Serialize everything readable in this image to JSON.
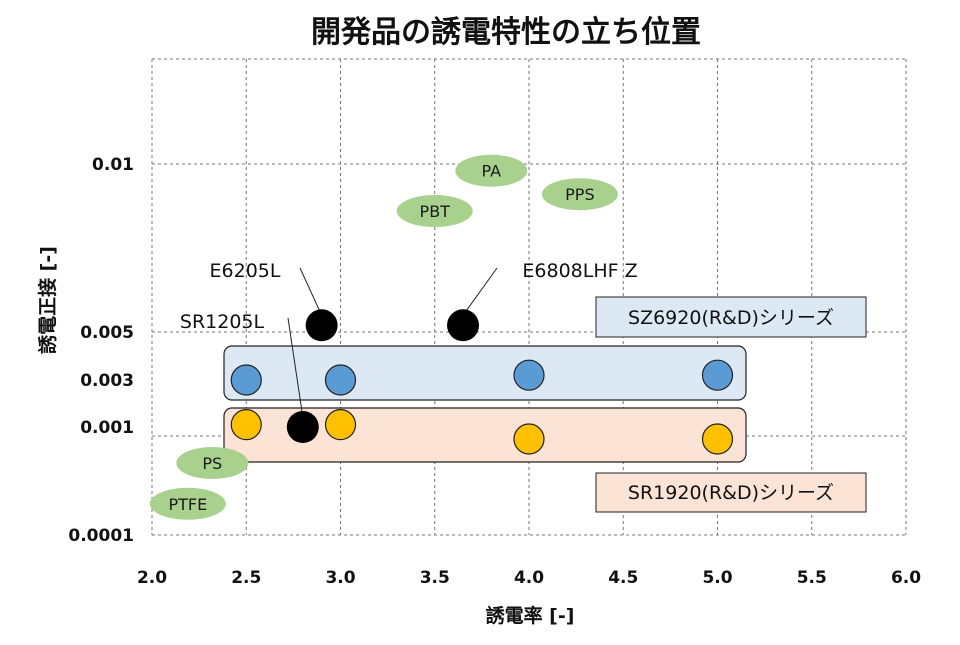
{
  "chart_data": {
    "type": "scatter",
    "title": "開発品の誘電特性の立ち位置",
    "xlabel": "誘電率 [-]",
    "ylabel": "誘電正接 [-]",
    "xlim": [
      2.0,
      6.0
    ],
    "x_ticks": [
      "2.0",
      "2.5",
      "3.0",
      "3.5",
      "4.0",
      "4.5",
      "5.0",
      "5.5",
      "6.0"
    ],
    "y_ticks": [
      "0.0001",
      "0.001",
      "0.003",
      "0.005",
      "0.01"
    ],
    "grid": true,
    "series": [
      {
        "name": "SZ6920(R&D)シリーズ",
        "color": "#5b9bd5",
        "points": [
          {
            "x": 2.5,
            "y": 0.003
          },
          {
            "x": 3.0,
            "y": 0.003
          },
          {
            "x": 4.0,
            "y": 0.0032
          },
          {
            "x": 5.0,
            "y": 0.0032
          }
        ]
      },
      {
        "name": "SR1920(R&D)シリーズ",
        "color": "#ffc000",
        "points": [
          {
            "x": 2.5,
            "y": 0.0011
          },
          {
            "x": 3.0,
            "y": 0.0011
          },
          {
            "x": 4.0,
            "y": 0.0009
          },
          {
            "x": 5.0,
            "y": 0.0009
          }
        ]
      }
    ],
    "products": [
      {
        "label": "E6205L",
        "x": 2.9,
        "y": 0.0052,
        "color": "#000000"
      },
      {
        "label": "E6808LHF Z",
        "x": 3.65,
        "y": 0.0052,
        "color": "#000000"
      },
      {
        "label": "SR1205L",
        "x": 2.8,
        "y": 0.001,
        "color": "#000000"
      }
    ],
    "materials": [
      {
        "label": "PA",
        "x": 3.8,
        "y": 0.0098
      },
      {
        "label": "PPS",
        "x": 4.27,
        "y": 0.0091
      },
      {
        "label": "PBT",
        "x": 3.5,
        "y": 0.0086
      },
      {
        "label": "PS",
        "x": 2.32,
        "y": 0.0007
      },
      {
        "label": "PTFE",
        "x": 2.19,
        "y": 0.00036
      }
    ],
    "material_color": "#a9d18e"
  }
}
